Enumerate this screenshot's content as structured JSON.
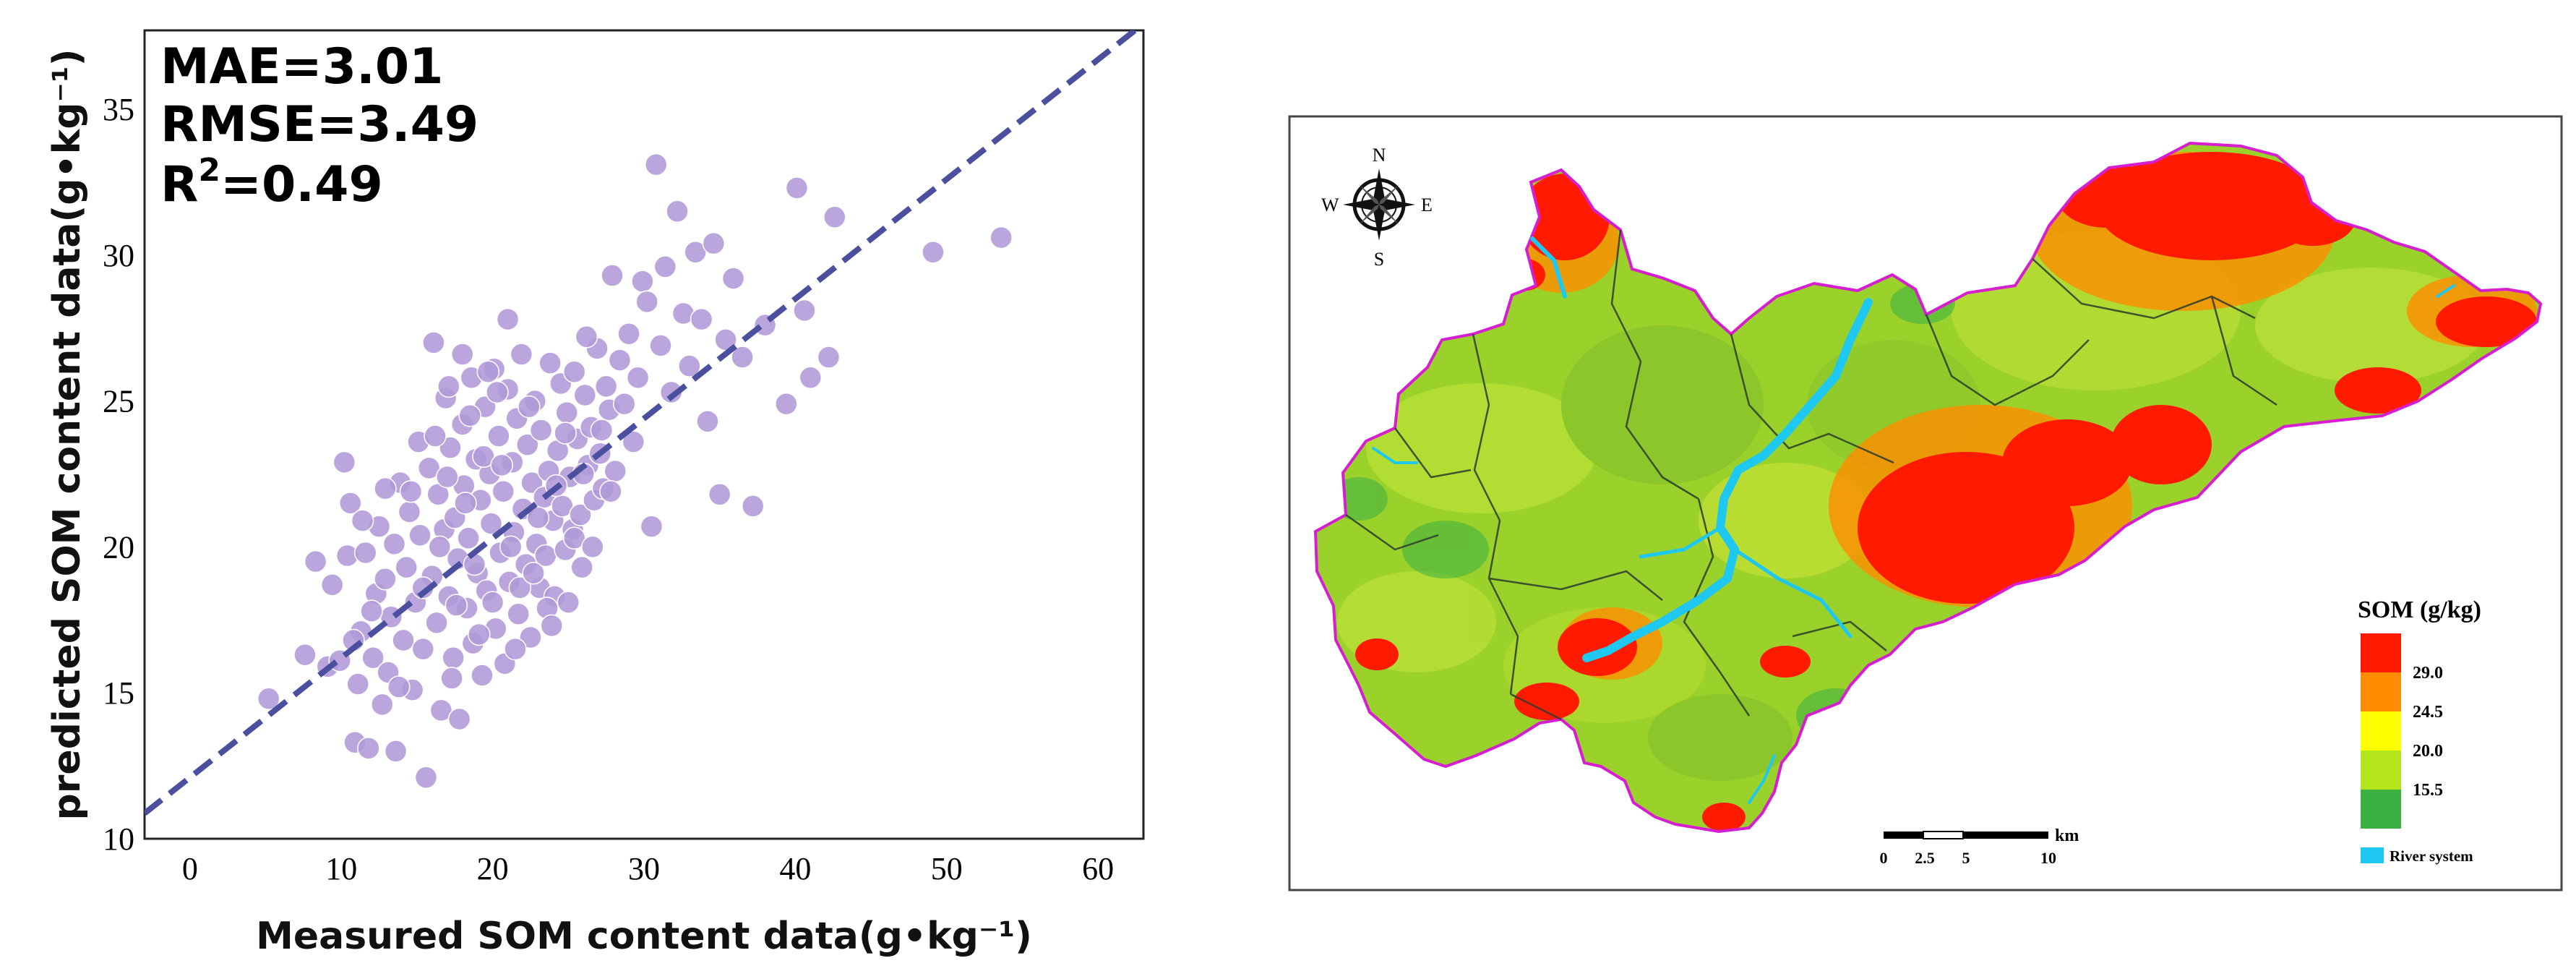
{
  "chart_data": [
    {
      "type": "scatter",
      "xlabel": "Measured SOM content data(g•kg⁻¹)",
      "ylabel": "predicted SOM content data(g•kg⁻¹)",
      "xlim": [
        -3,
        63
      ],
      "ylim": [
        10,
        37.7
      ],
      "x_ticks": [
        "0",
        "10",
        "20",
        "30",
        "40",
        "50",
        "60"
      ],
      "y_ticks": [
        "10",
        "15",
        "20",
        "25",
        "30",
        "35"
      ],
      "grid": false,
      "stats": {
        "mae": "MAE=3.01",
        "rmse": "RMSE=3.49",
        "r2_base": "R",
        "r2_sup": "2",
        "r2_value": "=0.49"
      },
      "fit_line": {
        "intercept": 12.1,
        "slope": 0.41
      },
      "point_color": "#b09ad8",
      "line_color": "#4a4f9e",
      "points": [
        [
          5.2,
          14.8
        ],
        [
          7.6,
          16.3
        ],
        [
          8.3,
          19.5
        ],
        [
          9.1,
          15.9
        ],
        [
          9.4,
          18.7
        ],
        [
          9.9,
          16.1
        ],
        [
          10.2,
          22.9
        ],
        [
          10.4,
          19.7
        ],
        [
          10.6,
          21.5
        ],
        [
          10.9,
          13.3
        ],
        [
          11.1,
          15.3
        ],
        [
          11.3,
          17.1
        ],
        [
          11.6,
          19.8
        ],
        [
          11.8,
          13.1
        ],
        [
          12.1,
          16.2
        ],
        [
          12.3,
          18.4
        ],
        [
          12.5,
          20.7
        ],
        [
          12.7,
          14.6
        ],
        [
          12.9,
          18.9
        ],
        [
          13.1,
          15.7
        ],
        [
          13.3,
          17.6
        ],
        [
          13.5,
          20.1
        ],
        [
          13.6,
          13.0
        ],
        [
          13.9,
          22.2
        ],
        [
          14.1,
          16.8
        ],
        [
          14.3,
          19.3
        ],
        [
          14.5,
          21.2
        ],
        [
          14.7,
          15.1
        ],
        [
          14.9,
          18.1
        ],
        [
          15.1,
          23.6
        ],
        [
          15.2,
          20.4
        ],
        [
          15.4,
          16.5
        ],
        [
          15.6,
          12.1
        ],
        [
          15.8,
          22.7
        ],
        [
          16.0,
          19.0
        ],
        [
          16.1,
          27.0
        ],
        [
          16.3,
          17.4
        ],
        [
          16.4,
          21.8
        ],
        [
          16.6,
          14.4
        ],
        [
          16.8,
          20.6
        ],
        [
          16.9,
          25.1
        ],
        [
          17.1,
          18.3
        ],
        [
          17.2,
          23.4
        ],
        [
          17.4,
          16.2
        ],
        [
          17.5,
          21.0
        ],
        [
          17.7,
          19.6
        ],
        [
          17.8,
          14.1
        ],
        [
          18.0,
          24.2
        ],
        [
          18.1,
          22.1
        ],
        [
          18.3,
          17.9
        ],
        [
          18.4,
          20.3
        ],
        [
          18.6,
          25.8
        ],
        [
          18.7,
          16.7
        ],
        [
          18.9,
          23.0
        ],
        [
          19.0,
          19.1
        ],
        [
          19.2,
          21.6
        ],
        [
          19.3,
          15.6
        ],
        [
          19.5,
          24.8
        ],
        [
          19.6,
          18.5
        ],
        [
          19.8,
          22.5
        ],
        [
          19.9,
          20.8
        ],
        [
          20.1,
          26.1
        ],
        [
          20.2,
          17.2
        ],
        [
          20.4,
          23.8
        ],
        [
          20.5,
          19.8
        ],
        [
          20.7,
          21.9
        ],
        [
          20.8,
          16.0
        ],
        [
          21.0,
          25.4
        ],
        [
          21.1,
          18.8
        ],
        [
          21.3,
          22.9
        ],
        [
          21.4,
          20.5
        ],
        [
          21.6,
          24.4
        ],
        [
          21.7,
          17.7
        ],
        [
          21.9,
          26.6
        ],
        [
          22.0,
          21.3
        ],
        [
          22.2,
          19.4
        ],
        [
          22.3,
          23.5
        ],
        [
          22.5,
          16.9
        ],
        [
          22.6,
          22.2
        ],
        [
          22.8,
          25.0
        ],
        [
          22.9,
          20.1
        ],
        [
          23.1,
          18.6
        ],
        [
          23.2,
          24.0
        ],
        [
          23.4,
          21.7
        ],
        [
          23.5,
          19.7
        ],
        [
          23.7,
          22.6
        ],
        [
          23.8,
          26.3
        ],
        [
          24.0,
          20.9
        ],
        [
          24.1,
          18.3
        ],
        [
          24.3,
          23.3
        ],
        [
          24.5,
          25.6
        ],
        [
          24.6,
          21.4
        ],
        [
          24.8,
          19.9
        ],
        [
          24.9,
          24.6
        ],
        [
          25.1,
          22.4
        ],
        [
          25.3,
          20.6
        ],
        [
          25.4,
          26.0
        ],
        [
          25.6,
          23.7
        ],
        [
          25.8,
          21.1
        ],
        [
          25.9,
          19.3
        ],
        [
          26.1,
          25.2
        ],
        [
          26.3,
          22.8
        ],
        [
          26.5,
          24.1
        ],
        [
          26.7,
          21.6
        ],
        [
          26.9,
          26.8
        ],
        [
          27.1,
          23.2
        ],
        [
          27.3,
          22.0
        ],
        [
          27.5,
          25.5
        ],
        [
          27.7,
          24.7
        ],
        [
          27.9,
          29.3
        ],
        [
          28.1,
          22.6
        ],
        [
          28.4,
          26.4
        ],
        [
          28.7,
          24.9
        ],
        [
          29.0,
          27.3
        ],
        [
          29.3,
          23.6
        ],
        [
          29.6,
          25.8
        ],
        [
          29.9,
          29.1
        ],
        [
          30.2,
          28.4
        ],
        [
          30.5,
          20.7
        ],
        [
          30.8,
          33.1
        ],
        [
          31.1,
          26.9
        ],
        [
          31.4,
          29.6
        ],
        [
          31.8,
          25.3
        ],
        [
          32.2,
          31.5
        ],
        [
          32.6,
          28.0
        ],
        [
          33.0,
          26.2
        ],
        [
          33.4,
          30.1
        ],
        [
          33.8,
          27.8
        ],
        [
          34.2,
          24.3
        ],
        [
          34.6,
          30.4
        ],
        [
          35.0,
          21.8
        ],
        [
          35.4,
          27.1
        ],
        [
          35.9,
          29.2
        ],
        [
          36.5,
          26.5
        ],
        [
          37.2,
          21.4
        ],
        [
          38.0,
          27.6
        ],
        [
          39.4,
          24.9
        ],
        [
          40.1,
          32.3
        ],
        [
          40.6,
          28.1
        ],
        [
          41.0,
          25.8
        ],
        [
          42.2,
          26.5
        ],
        [
          42.6,
          31.3
        ],
        [
          49.1,
          30.1
        ],
        [
          53.6,
          30.6
        ],
        [
          16.5,
          20.0
        ],
        [
          17.0,
          22.4
        ],
        [
          17.6,
          18.0
        ],
        [
          18.2,
          21.5
        ],
        [
          18.8,
          19.4
        ],
        [
          19.4,
          23.1
        ],
        [
          20.0,
          18.1
        ],
        [
          20.6,
          22.8
        ],
        [
          21.2,
          20.0
        ],
        [
          21.8,
          18.6
        ],
        [
          22.4,
          24.8
        ],
        [
          23.0,
          21.0
        ],
        [
          23.6,
          17.9
        ],
        [
          24.2,
          22.1
        ],
        [
          24.8,
          23.9
        ],
        [
          25.4,
          20.3
        ],
        [
          26.0,
          22.5
        ],
        [
          26.6,
          20.0
        ],
        [
          27.2,
          24.0
        ],
        [
          16.2,
          23.8
        ],
        [
          17.3,
          15.5
        ],
        [
          18.5,
          24.5
        ],
        [
          19.1,
          17.0
        ],
        [
          20.3,
          25.3
        ],
        [
          21.5,
          16.5
        ],
        [
          22.7,
          19.1
        ],
        [
          23.9,
          17.3
        ],
        [
          25.0,
          18.1
        ],
        [
          26.2,
          27.2
        ],
        [
          27.8,
          21.9
        ],
        [
          15.4,
          18.6
        ],
        [
          14.6,
          21.9
        ],
        [
          13.8,
          15.2
        ],
        [
          12.9,
          22.0
        ],
        [
          12.0,
          17.8
        ],
        [
          11.4,
          20.9
        ],
        [
          10.8,
          16.8
        ],
        [
          19.7,
          26.0
        ],
        [
          21.0,
          27.8
        ],
        [
          18.0,
          26.6
        ],
        [
          17.1,
          25.5
        ]
      ]
    },
    {
      "type": "map",
      "compass": {
        "n": "N",
        "s": "S",
        "e": "E",
        "w": "W"
      },
      "legend": {
        "title": "SOM (g/kg)",
        "classes": [
          {
            "color": "#ff1a00"
          },
          {
            "color": "#ff8c00"
          },
          {
            "color": "#ffff00"
          },
          {
            "color": "#b5e61d"
          },
          {
            "color": "#3cb043"
          }
        ],
        "break_labels": [
          "29.0",
          "24.5",
          "20.0",
          "15.5"
        ],
        "river_label": "River system",
        "river_color": "#1ec8f0"
      },
      "scale_bar": {
        "labels": [
          "0",
          "2.5",
          "5",
          "10"
        ],
        "unit": "km"
      }
    }
  ]
}
